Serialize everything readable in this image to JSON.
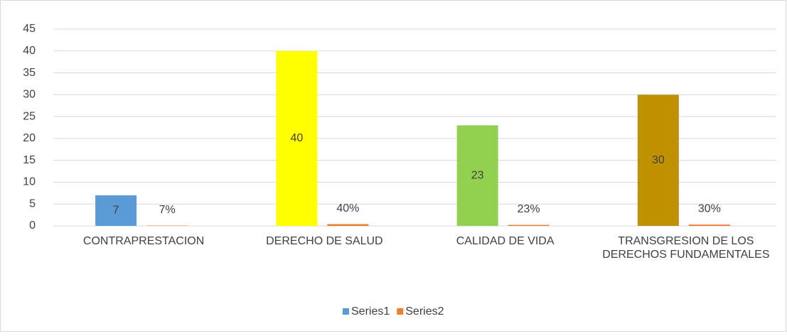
{
  "chart_data": {
    "type": "bar",
    "categories": [
      "CONTRAPRESTACION",
      "DERECHO DE SALUD",
      "CALIDAD DE VIDA",
      "TRANSGRESION DE LOS DERECHOS FUNDAMENTALES"
    ],
    "series": [
      {
        "name": "Series1",
        "color": "#5b9bd5",
        "colors": [
          "#5b9bd5",
          "#ffff00",
          "#92d050",
          "#bf9000"
        ],
        "values": [
          7,
          40,
          23,
          30
        ]
      },
      {
        "name": "Series2",
        "color": "#ed7d31",
        "values": [
          0.07,
          0.4,
          0.23,
          0.3
        ],
        "value_labels": [
          "7%",
          "40%",
          "23%",
          "30%"
        ]
      }
    ],
    "ylim": [
      0,
      45
    ],
    "yticks": [
      0,
      5,
      10,
      15,
      20,
      25,
      30,
      35,
      40,
      45
    ],
    "grid": true,
    "legend": "bottom"
  }
}
